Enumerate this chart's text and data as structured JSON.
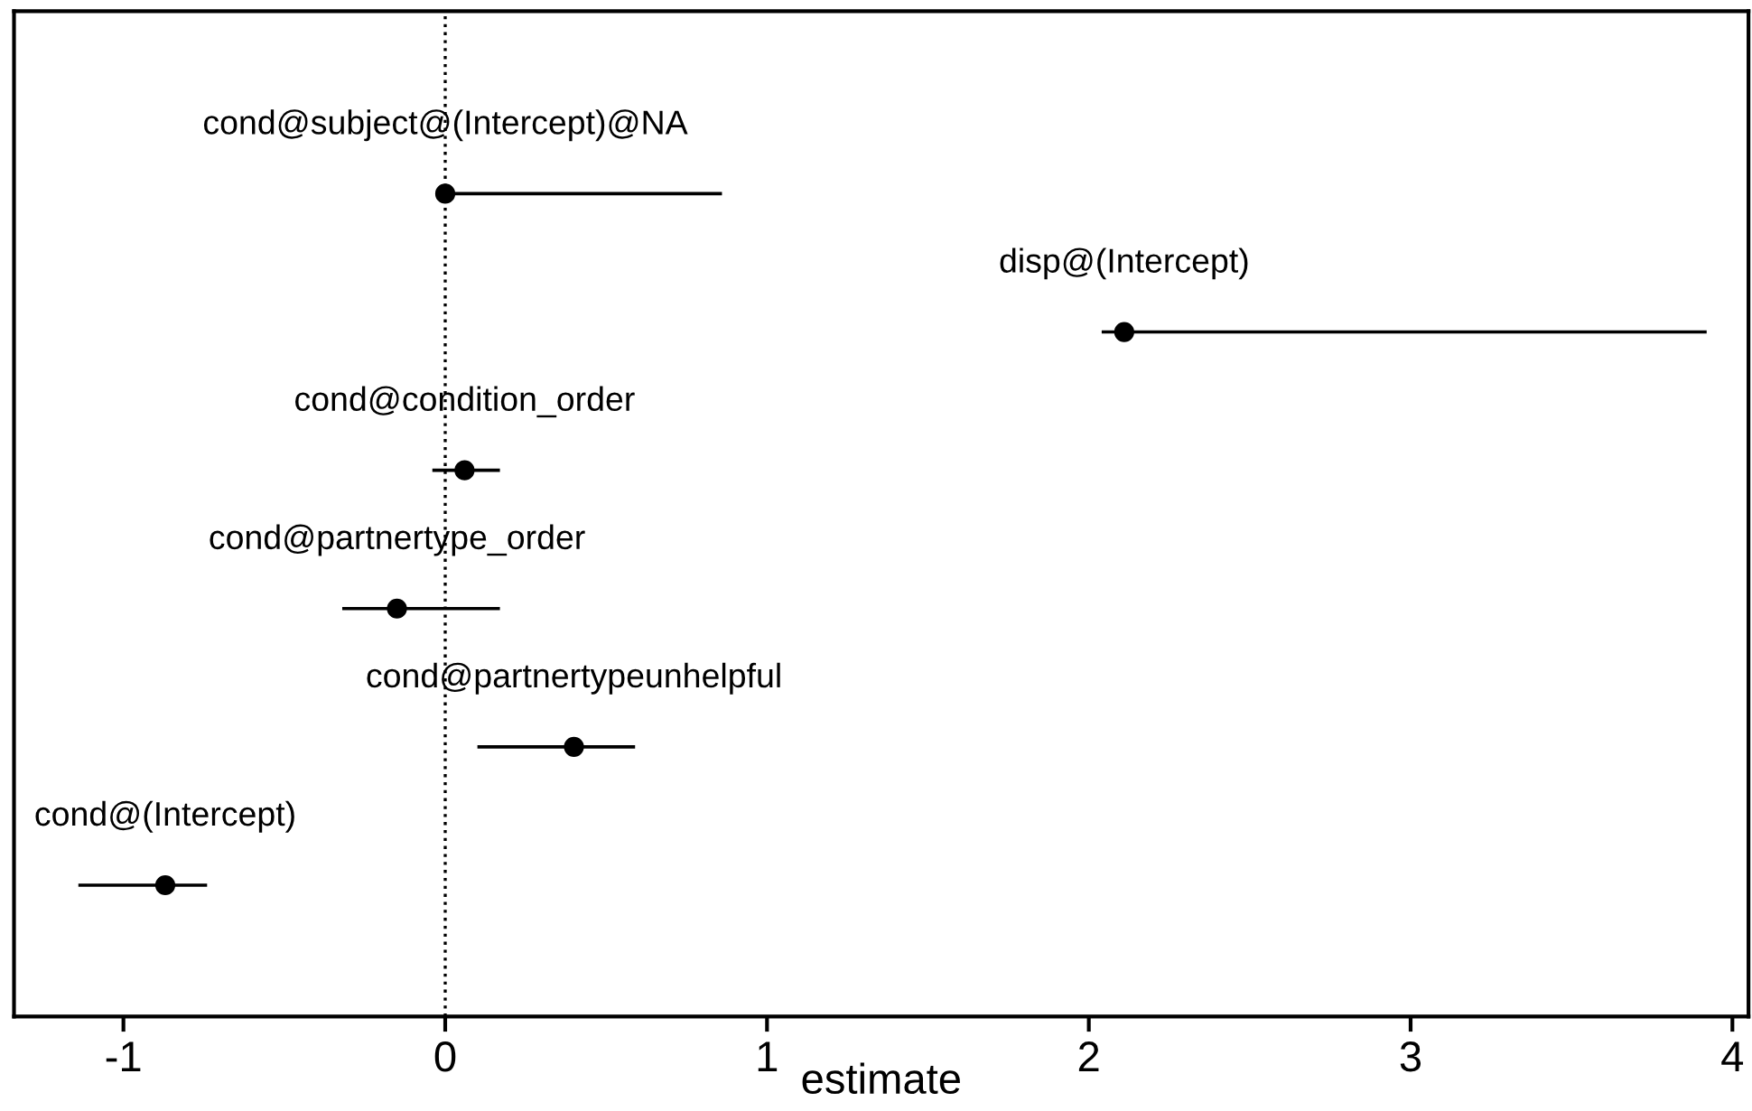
{
  "chart_data": {
    "type": "scatter",
    "orientation": "horizontal",
    "xlabel": "estimate",
    "categories": [
      "cond@subject@(Intercept)@NA",
      "disp@(Intercept)",
      "cond@condition_order",
      "cond@partnertype_order",
      "cond@partnertypeunhelpful",
      "cond@(Intercept)"
    ],
    "values": [
      0,
      2.11,
      0.06,
      -0.15,
      0.4,
      -0.87
    ],
    "errors": [
      [
        0,
        0.86
      ],
      [
        2.04,
        3.92
      ],
      [
        -0.04,
        0.17
      ],
      [
        -0.32,
        0.17
      ],
      [
        0.1,
        0.59
      ],
      [
        -1.14,
        -0.74
      ]
    ],
    "color": "#000000",
    "marker": "circle",
    "xlim": [
      -1.34,
      4.05
    ],
    "xticks": [
      -1,
      0,
      1,
      2,
      3,
      4
    ],
    "ref_lines": [
      {
        "axis": "x",
        "value": 0,
        "line_style": "dotted",
        "color": "#000000"
      }
    ],
    "tick_labels": "x",
    "grid": false,
    "legend": false
  }
}
